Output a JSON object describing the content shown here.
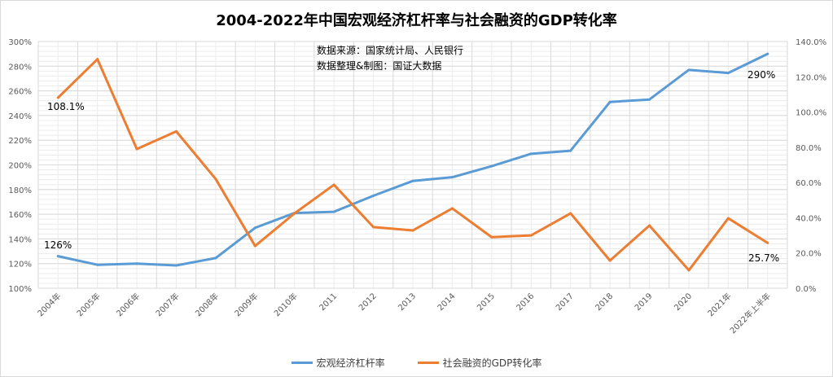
{
  "chart_data": {
    "type": "line",
    "title": "2004-2022年中国宏观经济杠杆率与社会融资的GDP转化率",
    "annotations": [
      "数据来源：国家统计局、人民银行",
      "数据整理&制图：国证大数据"
    ],
    "categories": [
      "2004年",
      "2005年",
      "2006年",
      "2007年",
      "2008年",
      "2009年",
      "2010年",
      "2011",
      "2012",
      "2013",
      "2014",
      "2015",
      "2016",
      "2017",
      "2018",
      "2019",
      "2020",
      "2021年",
      "2022年上半年"
    ],
    "y_left": {
      "range": [
        100,
        300
      ],
      "ticks": [
        "100%",
        "120%",
        "140%",
        "160%",
        "180%",
        "200%",
        "220%",
        "240%",
        "260%",
        "280%",
        "300%"
      ]
    },
    "y_right": {
      "range": [
        0,
        140
      ],
      "ticks": [
        "0.0%",
        "20.0%",
        "40.0%",
        "60.0%",
        "80.0%",
        "100.0%",
        "120.0%",
        "140.0%"
      ]
    },
    "grid": true,
    "legend_position": "bottom",
    "series": [
      {
        "name": "宏观经济杠杆率",
        "axis": "left",
        "color": "#5b9bd5",
        "values": [
          126,
          119,
          120,
          118.5,
          124.5,
          149,
          161,
          162,
          175,
          187,
          190,
          199,
          209,
          211.5,
          251,
          253,
          277,
          274.5,
          290
        ],
        "data_labels": {
          "0": "126%",
          "18": "290%"
        }
      },
      {
        "name": "社会融资的GDP转化率",
        "axis": "right",
        "color": "#ed7d31",
        "values": [
          108.1,
          130,
          79,
          89,
          62,
          24,
          42.5,
          58.7,
          34.7,
          32.8,
          45.3,
          29,
          30,
          42.5,
          15.7,
          35.6,
          10.2,
          39.7,
          25.7
        ],
        "data_labels": {
          "0": "108.1%",
          "18": "25.7%"
        }
      }
    ]
  }
}
